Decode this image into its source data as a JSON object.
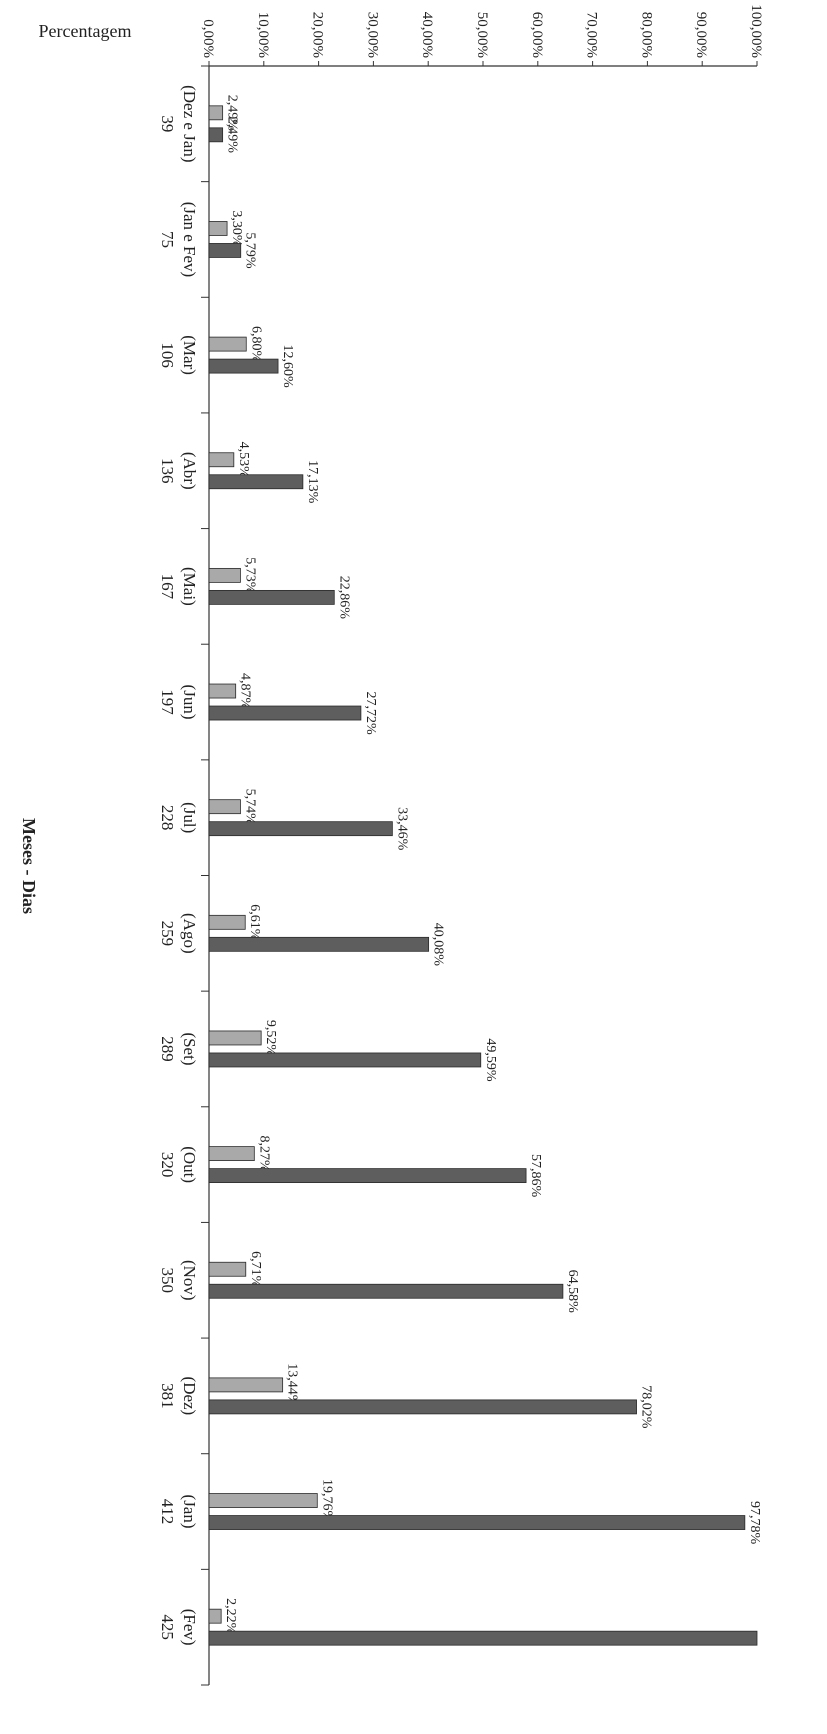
{
  "chart_data": {
    "type": "bar",
    "orientation": "rotated-90-clockwise",
    "title": "",
    "xlabel": "Meses - Dias",
    "ylabel": "Percentagem",
    "ylim": [
      0,
      100
    ],
    "yticks": [
      "0,00%",
      "10,00%",
      "20,00%",
      "30,00%",
      "40,00%",
      "50,00%",
      "60,00%",
      "70,00%",
      "80,00%",
      "90,00%",
      "100,00%"
    ],
    "grid": false,
    "categories": [
      {
        "month": "(Dez e Jan)",
        "days": "39"
      },
      {
        "month": "(Jan e Fev)",
        "days": "75"
      },
      {
        "month": "(Mar)",
        "days": "106"
      },
      {
        "month": "(Abr)",
        "days": "136"
      },
      {
        "month": "(Mai)",
        "days": "167"
      },
      {
        "month": "(Jun)",
        "days": "197"
      },
      {
        "month": "(Jul)",
        "days": "228"
      },
      {
        "month": "(Ago)",
        "days": "259"
      },
      {
        "month": "(Set)",
        "days": "289"
      },
      {
        "month": "(Out)",
        "days": "320"
      },
      {
        "month": "(Nov)",
        "days": "350"
      },
      {
        "month": "(Dez)",
        "days": "381"
      },
      {
        "month": "(Jan)",
        "days": "412"
      },
      {
        "month": "(Fev)",
        "days": "425"
      }
    ],
    "series": [
      {
        "color": "#a9a9a9",
        "values": [
          2.49,
          3.3,
          6.8,
          4.53,
          5.73,
          4.87,
          5.74,
          6.61,
          9.52,
          8.27,
          6.71,
          13.44,
          19.76,
          2.22
        ],
        "labels": [
          "2,49%",
          "3,30%",
          "6,80%",
          "4,53%",
          "5,73%",
          "4,87%",
          "5,74%",
          "6,61%",
          "9,52%",
          "8,27%",
          "6,71%",
          "13,44%",
          "19,76%",
          "2,22%"
        ]
      },
      {
        "color": "#5e5e5e",
        "values": [
          2.49,
          5.79,
          12.6,
          17.13,
          22.86,
          27.72,
          33.46,
          40.08,
          49.59,
          57.86,
          64.58,
          78.02,
          97.78,
          100.0
        ],
        "labels": [
          "2,49%",
          "5,79%",
          "12,60%",
          "17,13%",
          "22,86%",
          "27,72%",
          "33,46%",
          "40,08%",
          "49,59%",
          "57,86%",
          "64,58%",
          "78,02%",
          "97,78%",
          ""
        ]
      }
    ]
  }
}
